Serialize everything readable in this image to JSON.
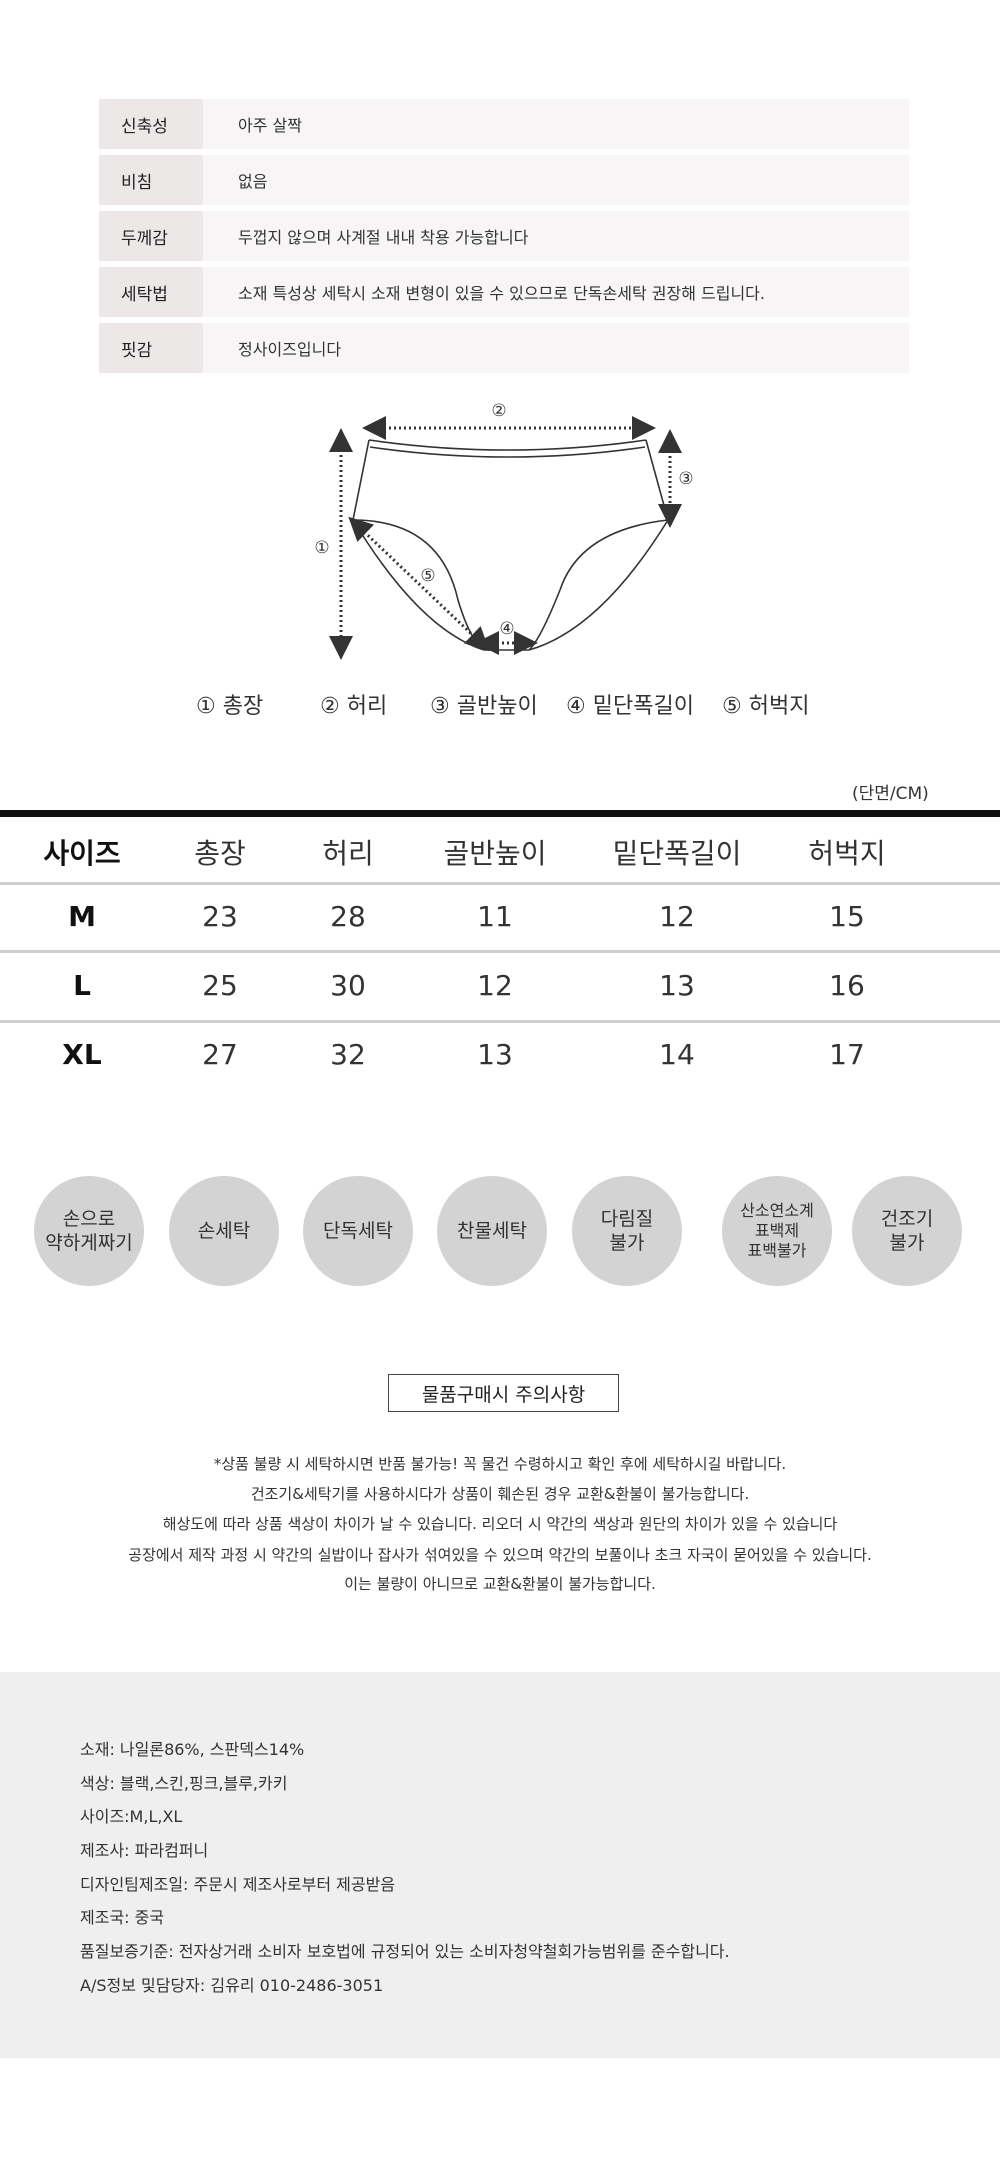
{
  "specs": [
    {
      "label": "신축성",
      "value": "아주 살짝"
    },
    {
      "label": "비침",
      "value": "없음"
    },
    {
      "label": "두께감",
      "value": "두껍지 않으며 사계절 내내 착용 가능합니다"
    },
    {
      "label": "세탁법",
      "value": "소재 특성상 세탁시 소재 변형이 있을 수 있으므로 단독손세탁 권장해 드립니다."
    },
    {
      "label": "핏감",
      "value": "정사이즈입니다"
    }
  ],
  "diagram": {
    "markers": [
      "①",
      "②",
      "③",
      "④",
      "⑤"
    ],
    "legend": [
      {
        "num": "①",
        "label": "총장"
      },
      {
        "num": "②",
        "label": "허리"
      },
      {
        "num": "③",
        "label": "골반높이"
      },
      {
        "num": "④",
        "label": "밑단폭길이"
      },
      {
        "num": "⑤",
        "label": "허벅지"
      }
    ]
  },
  "size_table": {
    "unit": "(단면/CM)",
    "headers": [
      "사이즈",
      "총장",
      "허리",
      "골반높이",
      "밑단폭길이",
      "허벅지"
    ],
    "rows": [
      [
        "M",
        "23",
        "28",
        "11",
        "12",
        "15"
      ],
      [
        "L",
        "25",
        "30",
        "12",
        "13",
        "16"
      ],
      [
        "XL",
        "27",
        "32",
        "13",
        "14",
        "17"
      ]
    ]
  },
  "care_icons": [
    "손으로\n약하게짜기",
    "손세탁",
    "단독세탁",
    "찬물세탁",
    "다림질\n불가",
    "산소연소계\n표백제\n표백불가",
    "건조기\n불가"
  ],
  "notice": {
    "title": "물품구매시 주의사항",
    "lines": [
      "*상품 불량 시 세탁하시면 반품 불가능! 꼭 물건 수령하시고 확인 후에 세탁하시길 바랍니다.",
      "건조기&세탁기를 사용하시다가 상품이 훼손된 경우 교환&환불이 불가능합니다.",
      "해상도에 따라 상품 색상이 차이가 날 수 있습니다. 리오더 시 약간의 색상과 원단의 차이가 있을 수 있습니다",
      "공장에서 제작 과정 시 약간의 실밥이나 잡사가 섞여있을 수 있으며 약간의 보풀이나 초크 자국이 묻어있을 수 있습니다.",
      "이는 불량이 아니므로 교환&환불이 불가능합니다."
    ]
  },
  "product_info": [
    "소재: 나일론86%, 스판덱스14%",
    "색상: 블랙,스킨,핑크,블루,카키",
    "사이즈:M,L,XL",
    "제조사: 파라컴퍼니",
    "디자인팀제조일: 주문시 제조사로부터 제공받음",
    "제조국: 중국",
    "품질보증기준: 전자상거래 소비자 보호법에 규정되어 있는 소비자청약철회가능범위를 준수합니다.",
    "A/S정보 및담당자: 김유리 010-2486-3051"
  ],
  "colors": {
    "label_bg": "#ece8e8",
    "value_bg": "#f7f5f5",
    "circle": "#d3d3d3",
    "info_bg": "#efefef"
  }
}
